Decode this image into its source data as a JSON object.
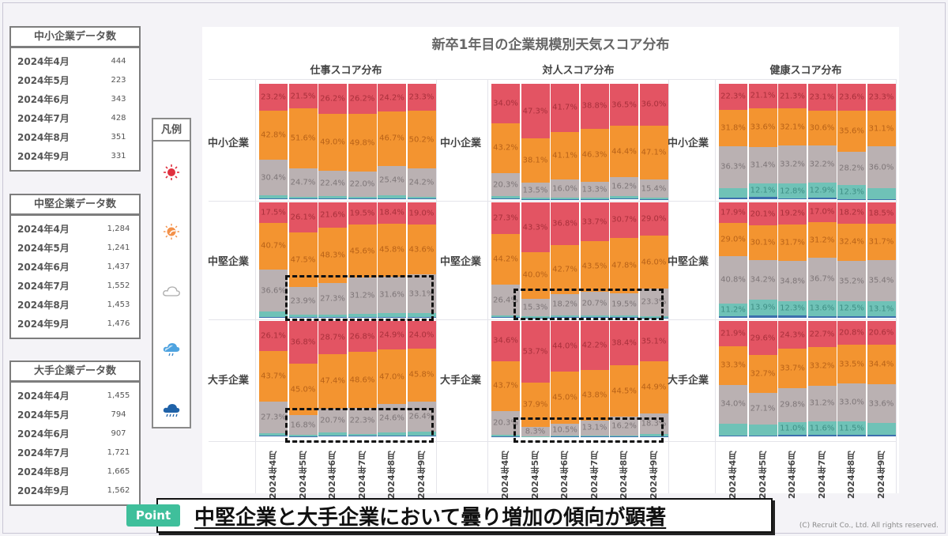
{
  "count_tables": [
    {
      "title": "中小企業データ数",
      "rows": [
        {
          "month": "2024年4月",
          "count": "444"
        },
        {
          "month": "2024年5月",
          "count": "223"
        },
        {
          "month": "2024年6月",
          "count": "343"
        },
        {
          "month": "2024年7月",
          "count": "428"
        },
        {
          "month": "2024年8月",
          "count": "351"
        },
        {
          "month": "2024年9月",
          "count": "331"
        }
      ]
    },
    {
      "title": "中堅企業データ数",
      "rows": [
        {
          "month": "2024年4月",
          "count": "1,284"
        },
        {
          "month": "2024年5月",
          "count": "1,241"
        },
        {
          "month": "2024年6月",
          "count": "1,437"
        },
        {
          "month": "2024年7月",
          "count": "1,552"
        },
        {
          "month": "2024年8月",
          "count": "1,453"
        },
        {
          "month": "2024年9月",
          "count": "1,476"
        }
      ]
    },
    {
      "title": "大手企業データ数",
      "rows": [
        {
          "month": "2024年4月",
          "count": "1,455"
        },
        {
          "month": "2024年5月",
          "count": "794"
        },
        {
          "month": "2024年6月",
          "count": "907"
        },
        {
          "month": "2024年7月",
          "count": "1,721"
        },
        {
          "month": "2024年8月",
          "count": "1,665"
        },
        {
          "month": "2024年9月",
          "count": "1,562"
        }
      ]
    }
  ],
  "legend": {
    "title": "凡例",
    "items": [
      {
        "icon": "sunny-icon",
        "color": "#e35463"
      },
      {
        "icon": "partly-sunny-icon",
        "color": "#f39430"
      },
      {
        "icon": "cloudy-icon",
        "color": "#bab1b2"
      },
      {
        "icon": "rain-icon",
        "color": "#6fc2b7"
      },
      {
        "icon": "heavy-rain-icon",
        "color": "#3d6fae"
      }
    ]
  },
  "point": {
    "badge": "Point",
    "text": "中堅企業と大手企業において曇り増加の傾向が顕著"
  },
  "copyright": "(C) Recruit Co., Ltd. All rights reserved.",
  "chart_data": {
    "type": "bar",
    "stacked": true,
    "normalized": true,
    "title": "新卒1年目の企業規模別天気スコア分布",
    "categories": [
      "2024年4月",
      "2024年5月",
      "2024年6月",
      "2024年7月",
      "2024年8月",
      "2024年9月"
    ],
    "row_labels": [
      "中小企業",
      "中堅企業",
      "大手企業"
    ],
    "series_names": [
      "晴れ",
      "晴れ時々曇り",
      "曇り",
      "雨",
      "大雨"
    ],
    "series_colors": [
      "#e35463",
      "#f39430",
      "#bab1b2",
      "#6fc2b7",
      "#3d6fae"
    ],
    "panels": [
      {
        "title": "仕事スコア分布",
        "rows": [
          {
            "label": "中小企業",
            "bars": [
              [
                23.2,
                42.8,
                30.4,
                3.0,
                0.6
              ],
              [
                21.5,
                51.6,
                24.7,
                1.8,
                0.4
              ],
              [
                26.2,
                49.0,
                22.4,
                2.0,
                0.4
              ],
              [
                26.2,
                49.8,
                22.0,
                1.6,
                0.4
              ],
              [
                24.2,
                46.7,
                25.4,
                3.2,
                0.5
              ],
              [
                23.3,
                50.2,
                24.2,
                1.9,
                0.4
              ]
            ]
          },
          {
            "label": "中堅企業",
            "bars": [
              [
                17.5,
                40.7,
                36.6,
                4.5,
                0.7
              ],
              [
                26.1,
                47.5,
                23.9,
                2.1,
                0.4
              ],
              [
                21.6,
                48.3,
                27.3,
                2.4,
                0.4
              ],
              [
                19.5,
                45.6,
                31.2,
                3.2,
                0.5
              ],
              [
                18.4,
                45.8,
                31.6,
                3.7,
                0.5
              ],
              [
                19.0,
                43.6,
                33.1,
                3.8,
                0.5
              ]
            ]
          },
          {
            "label": "大手企業",
            "bars": [
              [
                26.1,
                43.7,
                27.3,
                2.5,
                0.4
              ],
              [
                36.8,
                45.0,
                16.8,
                1.1,
                0.3
              ],
              [
                28.7,
                47.4,
                20.7,
                2.8,
                0.4
              ],
              [
                26.8,
                48.6,
                22.3,
                1.9,
                0.4
              ],
              [
                24.9,
                47.0,
                24.6,
                3.0,
                0.5
              ],
              [
                24.0,
                45.8,
                26.4,
                3.3,
                0.5
              ]
            ]
          }
        ]
      },
      {
        "title": "対人スコア分布",
        "rows": [
          {
            "label": "中小企業",
            "bars": [
              [
                34.0,
                43.2,
                20.3,
                2.0,
                0.5
              ],
              [
                47.3,
                38.1,
                13.5,
                0.8,
                0.3
              ],
              [
                41.7,
                41.1,
                16.0,
                0.9,
                0.3
              ],
              [
                38.8,
                46.3,
                13.3,
                1.3,
                0.3
              ],
              [
                36.5,
                44.4,
                16.2,
                2.5,
                0.4
              ],
              [
                36.0,
                47.1,
                15.4,
                1.2,
                0.3
              ]
            ]
          },
          {
            "label": "中堅企業",
            "bars": [
              [
                27.3,
                44.2,
                26.4,
                1.7,
                0.4
              ],
              [
                43.3,
                40.0,
                15.3,
                1.1,
                0.3
              ],
              [
                36.8,
                42.7,
                18.2,
                1.9,
                0.4
              ],
              [
                33.7,
                43.5,
                20.7,
                1.7,
                0.4
              ],
              [
                30.7,
                47.8,
                19.5,
                1.6,
                0.4
              ],
              [
                29.0,
                46.0,
                23.3,
                1.4,
                0.3
              ]
            ]
          },
          {
            "label": "大手企業",
            "bars": [
              [
                34.6,
                43.7,
                20.3,
                1.1,
                0.3
              ],
              [
                53.7,
                37.9,
                8.3,
                0.1,
                0.0
              ],
              [
                44.0,
                45.0,
                10.5,
                0.4,
                0.1
              ],
              [
                42.2,
                43.8,
                13.1,
                0.7,
                0.2
              ],
              [
                38.4,
                44.5,
                16.2,
                0.7,
                0.2
              ],
              [
                35.1,
                44.9,
                18.3,
                1.4,
                0.3
              ]
            ]
          }
        ]
      },
      {
        "title": "健康スコア分布",
        "rows": [
          {
            "label": "中小企業",
            "bars": [
              [
                22.3,
                31.8,
                36.3,
                8.5,
                1.1
              ],
              [
                21.1,
                33.6,
                31.4,
                12.1,
                1.8
              ],
              [
                21.3,
                32.1,
                33.2,
                12.8,
                0.6
              ],
              [
                23.1,
                30.6,
                32.2,
                12.9,
                1.2
              ],
              [
                23.6,
                35.6,
                28.2,
                12.3,
                0.3
              ],
              [
                23.3,
                31.1,
                36.0,
                9.3,
                0.3
              ]
            ]
          },
          {
            "label": "中堅企業",
            "bars": [
              [
                17.9,
                29.0,
                40.8,
                11.2,
                1.1
              ],
              [
                20.1,
                30.1,
                34.2,
                13.9,
                1.7
              ],
              [
                19.2,
                31.7,
                34.8,
                12.3,
                2.0
              ],
              [
                17.0,
                31.2,
                36.7,
                13.6,
                1.5
              ],
              [
                18.2,
                32.4,
                35.2,
                12.5,
                1.7
              ],
              [
                18.5,
                31.7,
                35.4,
                13.1,
                1.3
              ]
            ]
          },
          {
            "label": "大手企業",
            "bars": [
              [
                21.9,
                33.3,
                34.0,
                9.8,
                1.0
              ],
              [
                29.6,
                32.7,
                27.1,
                9.6,
                1.0
              ],
              [
                24.3,
                33.7,
                29.8,
                11.0,
                1.2
              ],
              [
                22.7,
                33.2,
                31.2,
                11.6,
                1.3
              ],
              [
                20.8,
                33.5,
                33.0,
                11.5,
                1.2
              ],
              [
                20.6,
                34.4,
                33.6,
                10.2,
                1.2
              ]
            ]
          }
        ]
      }
    ],
    "annotations": [
      "仕事スコア: 中堅企業 5月〜9月 曇り (dashed box)",
      "仕事スコア: 大手企業 5月〜9月 曇り (dashed box)",
      "対人スコア: 中堅企業 5月〜9月 曇り (dashed box)",
      "対人スコア: 大手企業 5月〜9月 曇り (dashed box)"
    ]
  }
}
